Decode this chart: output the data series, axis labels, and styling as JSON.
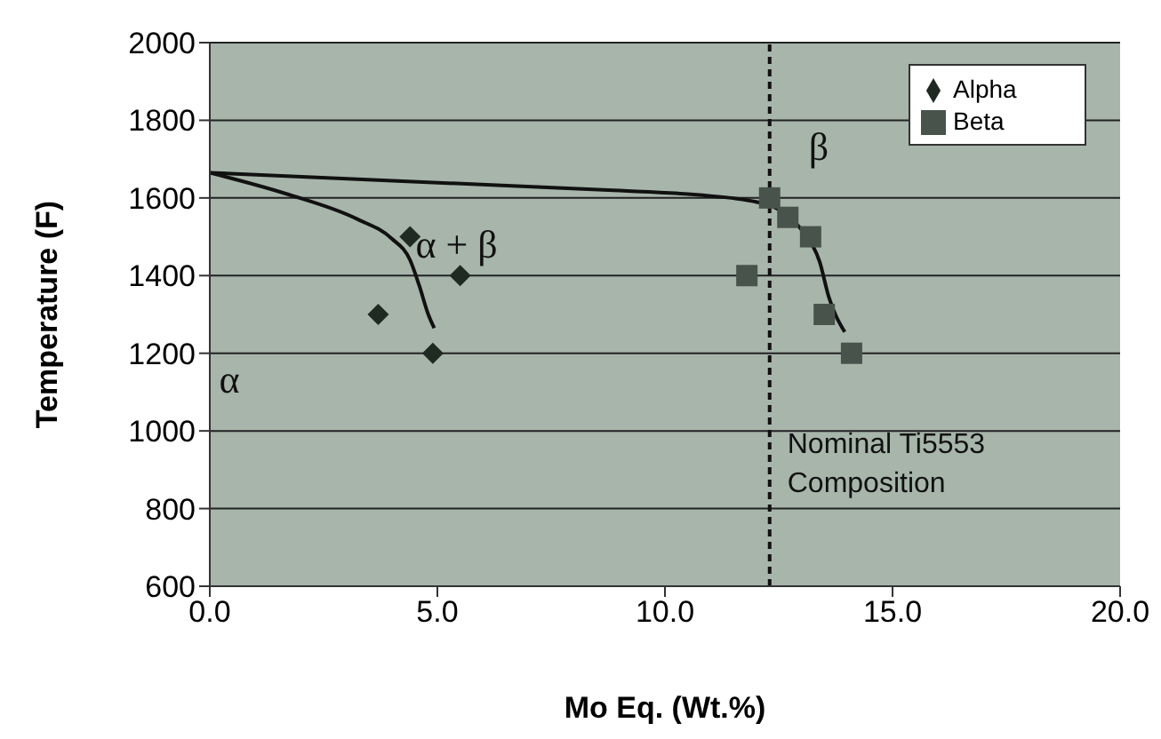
{
  "chart_data": {
    "type": "scatter",
    "xlabel": "Mo Eq. (Wt.%)",
    "ylabel": "Temperature (F)",
    "xlim": [
      0,
      20
    ],
    "xticks": [
      {
        "value": 0,
        "label": "0.0"
      },
      {
        "value": 5,
        "label": "5.0"
      },
      {
        "value": 10,
        "label": "10.0"
      },
      {
        "value": 15,
        "label": "15.0"
      },
      {
        "value": 20,
        "label": "20.0"
      }
    ],
    "ylim": [
      600,
      2000
    ],
    "yticks": [
      600,
      800,
      1000,
      1200,
      1400,
      1600,
      1800,
      2000
    ],
    "grid": "y",
    "legend": "top right",
    "series": [
      {
        "name": "Alpha",
        "marker": "diamond",
        "color": "#1f2a22",
        "x": [
          3.7,
          4.4,
          4.9,
          5.5
        ],
        "values": [
          1300,
          1500,
          1200,
          1400
        ]
      },
      {
        "name": "Beta",
        "marker": "square",
        "color": "#48534b",
        "x": [
          12.3,
          12.7,
          13.2,
          11.8,
          13.5,
          14.1
        ],
        "values": [
          1600,
          1550,
          1500,
          1400,
          1300,
          1200
        ]
      },
      {
        "type": "line",
        "marker": "none",
        "color": "#111111",
        "x": [
          0,
          1.7,
          3.25,
          4.0,
          4.4,
          4.6,
          4.8,
          4.93
        ],
        "values": [
          1665,
          1610,
          1545,
          1495,
          1440,
          1375,
          1300,
          1265
        ]
      },
      {
        "type": "line",
        "marker": "none",
        "color": "#111111",
        "x": [
          0,
          8.75,
          10.7,
          12.0,
          12.7,
          13.05,
          13.4,
          13.6,
          13.95
        ],
        "values": [
          1665,
          1620,
          1608,
          1590,
          1555,
          1510,
          1435,
          1345,
          1255
        ]
      }
    ],
    "ref_lines": [
      {
        "axis": "x",
        "value": 12.3,
        "label": "Nominal Ti5553 Composition",
        "color": "#111111",
        "line_style": "dashed"
      }
    ],
    "annotations": [
      "α",
      "α + β",
      "β"
    ]
  }
}
